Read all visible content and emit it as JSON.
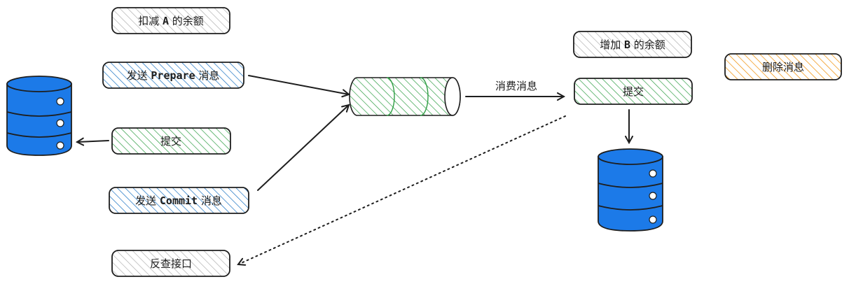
{
  "boxes": {
    "deduct": {
      "pre": "扣减 ",
      "term": "A",
      "post": " 的余额"
    },
    "send_prepare": {
      "pre": "发送 ",
      "term": "Prepare",
      "post": " 消息"
    },
    "commit_left": {
      "text": "提交"
    },
    "send_commit": {
      "pre": "发送 ",
      "term": "Commit",
      "post": " 消息"
    },
    "reverse_check": {
      "text": "反查接口"
    },
    "increase": {
      "pre": "增加 ",
      "term": "B",
      "post": " 的余额"
    },
    "commit_right": {
      "text": "提交"
    },
    "delete_msg": {
      "text": "删除消息"
    }
  },
  "edge_labels": {
    "consume": "消费消息"
  },
  "colors": {
    "gray_hatch": "#b0b0b0",
    "blue_hatch": "#1971c2",
    "green_hatch": "#2f9e44",
    "yellow_hatch": "#f08c00",
    "database_fill": "#1c7ae8",
    "stroke": "#1e1e1e"
  },
  "icons": {
    "database": "database-icon",
    "queue": "message-queue-icon"
  }
}
